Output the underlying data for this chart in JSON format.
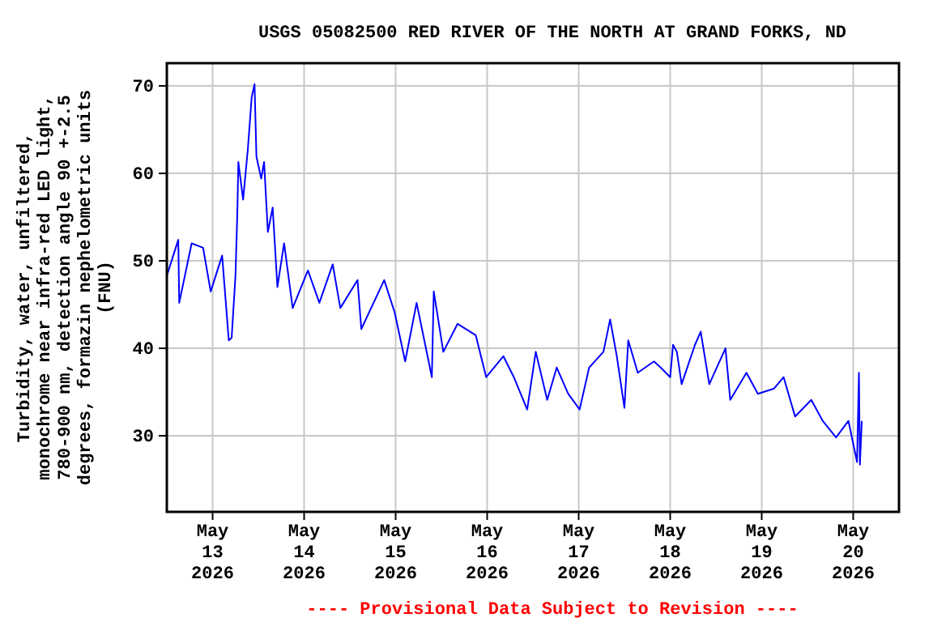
{
  "chart_data": {
    "type": "line",
    "title": "USGS 05082500 RED RIVER OF THE NORTH AT GRAND FORKS, ND",
    "ylabel": "Turbidity, water, unfiltered,\nmonochrome near infra-red LED light,\n780-900 nm, detection angle 90 +-2.5\ndegrees, formazin nephelometric units\n(FNU)",
    "annotations": [
      "---- Provisional Data Subject to Revision ----"
    ],
    "x": [
      "2026-05-12T12:00",
      "2026-05-12T15:00",
      "2026-05-12T15:15",
      "2026-05-12T18:30",
      "2026-05-12T21:30",
      "2026-05-12T23:30",
      "2026-05-13T02:30",
      "2026-05-13T04:15",
      "2026-05-13T05:00",
      "2026-05-13T06:00",
      "2026-05-13T06:30",
      "2026-05-13T06:45",
      "2026-05-13T08:00",
      "2026-05-13T09:15",
      "2026-05-13T10:15",
      "2026-05-13T11:00",
      "2026-05-13T11:30",
      "2026-05-13T12:45",
      "2026-05-13T13:30",
      "2026-05-13T14:30",
      "2026-05-13T15:45",
      "2026-05-13T17:00",
      "2026-05-13T18:45",
      "2026-05-13T21:00",
      "2026-05-14T01:00",
      "2026-05-14T04:00",
      "2026-05-14T07:30",
      "2026-05-14T09:30",
      "2026-05-14T14:00",
      "2026-05-14T15:00",
      "2026-05-14T21:00",
      "2026-05-14T23:45",
      "2026-05-15T02:30",
      "2026-05-15T05:30",
      "2026-05-15T09:30",
      "2026-05-15T10:00",
      "2026-05-15T12:30",
      "2026-05-15T16:15",
      "2026-05-15T21:00",
      "2026-05-15T23:45",
      "2026-05-16T04:15",
      "2026-05-16T07:00",
      "2026-05-16T10:30",
      "2026-05-16T12:45",
      "2026-05-16T15:45",
      "2026-05-16T18:15",
      "2026-05-16T21:15",
      "2026-05-17T00:15",
      "2026-05-17T02:45",
      "2026-05-17T06:30",
      "2026-05-17T08:15",
      "2026-05-17T10:00",
      "2026-05-17T12:00",
      "2026-05-17T13:00",
      "2026-05-17T15:30",
      "2026-05-17T19:45",
      "2026-05-17T21:30",
      "2026-05-18T00:00",
      "2026-05-18T00:45",
      "2026-05-18T01:45",
      "2026-05-18T03:00",
      "2026-05-18T06:30",
      "2026-05-18T08:00",
      "2026-05-18T10:15",
      "2026-05-18T14:30",
      "2026-05-18T15:45",
      "2026-05-18T20:00",
      "2026-05-18T23:00",
      "2026-05-19T03:15",
      "2026-05-19T05:45",
      "2026-05-19T08:45",
      "2026-05-19T13:00",
      "2026-05-19T16:00",
      "2026-05-19T19:30",
      "2026-05-19T22:45",
      "2026-05-20T01:00",
      "2026-05-20T01:30",
      "2026-05-20T01:45",
      "2026-05-20T02:15"
    ],
    "series": [
      {
        "color": "#0000ff",
        "values": [
          48.3,
          52.4,
          45.2,
          52,
          51.5,
          46.5,
          50.6,
          40.9,
          41.2,
          48.3,
          55.7,
          61.3,
          57,
          62.8,
          68.7,
          70.2,
          61.9,
          59.4,
          61.3,
          53.3,
          56.1,
          47,
          52,
          44.6,
          48.9,
          45.2,
          49.6,
          44.6,
          47.8,
          42.2,
          47.8,
          44.1,
          38.5,
          45.2,
          36.7,
          46.5,
          39.6,
          42.8,
          41.5,
          36.7,
          39.1,
          36.7,
          33,
          39.6,
          34.1,
          37.8,
          34.8,
          33,
          37.8,
          39.6,
          43.3,
          39.1,
          33.2,
          40.9,
          37.2,
          38.5,
          37.8,
          36.7,
          40.4,
          39.6,
          35.9,
          40.4,
          41.9,
          35.9,
          40,
          34.1,
          37.2,
          34.8,
          35.4,
          36.7,
          32.2,
          34.1,
          31.7,
          29.8,
          31.7,
          27,
          37.2,
          26.7,
          31.7
        ]
      }
    ],
    "xlim": [
      "2026-05-12T12:00",
      "2026-05-20T12:00"
    ],
    "xticks": [
      {
        "value": "2026-05-13",
        "label": "May\n13\n2026"
      },
      {
        "value": "2026-05-14",
        "label": "May\n14\n2026"
      },
      {
        "value": "2026-05-15",
        "label": "May\n15\n2026"
      },
      {
        "value": "2026-05-16",
        "label": "May\n16\n2026"
      },
      {
        "value": "2026-05-17",
        "label": "May\n17\n2026"
      },
      {
        "value": "2026-05-18",
        "label": "May\n18\n2026"
      },
      {
        "value": "2026-05-19",
        "label": "May\n19\n2026"
      },
      {
        "value": "2026-05-20",
        "label": "May\n20\n2026"
      }
    ],
    "ylim": [
      21.3,
      72.6
    ],
    "yticks": [
      30,
      40,
      50,
      60,
      70
    ],
    "grid": true
  }
}
